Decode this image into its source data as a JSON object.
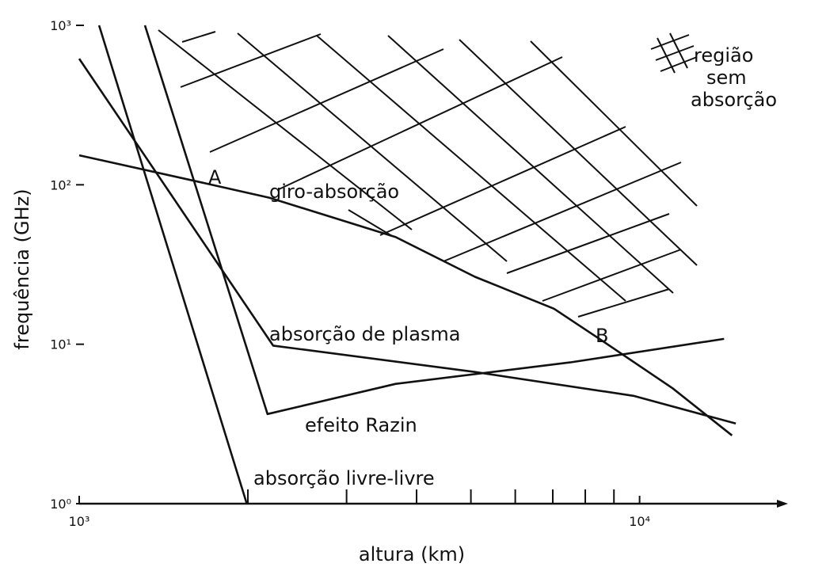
{
  "chart_data": {
    "type": "line",
    "xscale": "log",
    "yscale": "log",
    "xlabel": "altura (km)",
    "ylabel": "frequência (GHz)",
    "xlim": [
      1000,
      18400
    ],
    "ylim": [
      1,
      1000
    ],
    "xticks": [
      {
        "value": 1000,
        "label": "10³"
      },
      {
        "value": 10000,
        "label": "10⁴"
      }
    ],
    "xminor_ticks": [
      2000,
      3000,
      4000,
      5000,
      6000,
      7000,
      8000,
      9000
    ],
    "yticks": [
      {
        "value": 1,
        "label": "10⁰"
      },
      {
        "value": 10,
        "label": "10¹"
      },
      {
        "value": 100,
        "label": "10²"
      },
      {
        "value": 1000,
        "label": "10³"
      }
    ],
    "series": [
      {
        "name": "giro-absorção",
        "color": "#111111",
        "x": [
          1000,
          1683,
          2183,
          3672,
          5083,
          7035,
          8547,
          11450,
          14620
        ],
        "y": [
          153,
          102,
          83,
          47,
          26.5,
          16.7,
          10.6,
          5.3,
          2.68
        ]
      },
      {
        "name": "absorção de plasma",
        "color": "#111111",
        "x": [
          1000,
          2219,
          5083,
          9750,
          14850
        ],
        "y": [
          618,
          9.8,
          6.7,
          4.75,
          3.18
        ]
      },
      {
        "name": "efeito Razin",
        "color": "#111111",
        "x": [
          1310,
          2168,
          3672,
          7517,
          14150
        ],
        "y": [
          1000,
          3.65,
          5.64,
          7.69,
          10.8
        ]
      },
      {
        "name": "absorção livre-livre",
        "color": "#111111",
        "x": [
          1085,
          1991
        ],
        "y": [
          1000,
          1
        ]
      }
    ],
    "annotations": [
      "A",
      "B"
    ],
    "region_label": [
      "região",
      "sem",
      "absorção"
    ]
  }
}
